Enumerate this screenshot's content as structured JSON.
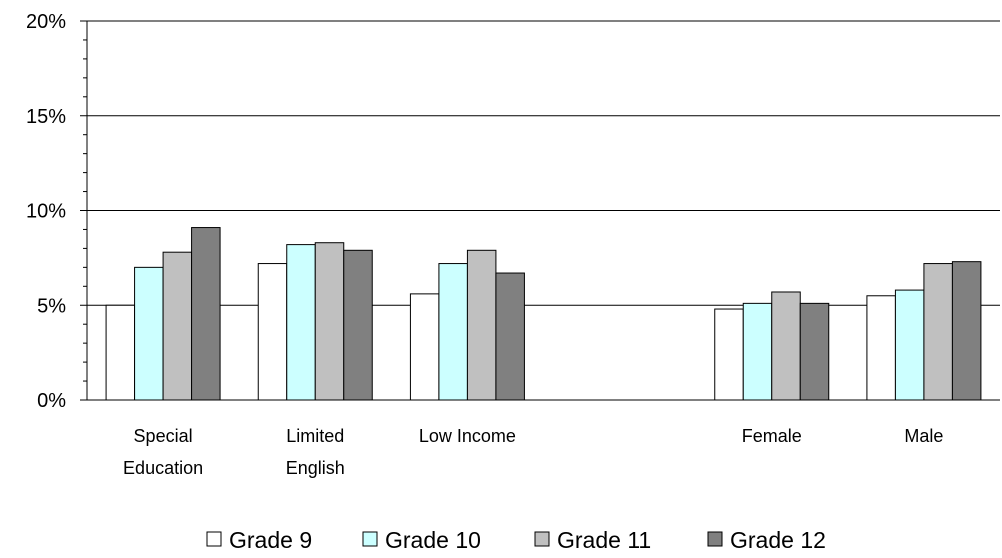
{
  "chart_data": {
    "type": "bar",
    "categories": [
      [
        "Special",
        "Education"
      ],
      [
        "Limited",
        "English"
      ],
      [
        "Low  Income"
      ],
      [],
      [
        "Female"
      ],
      [
        "Male"
      ]
    ],
    "series": [
      {
        "name": "Grade 9",
        "color": "#ffffff",
        "values": [
          5.0,
          7.2,
          5.6,
          null,
          4.8,
          5.5
        ]
      },
      {
        "name": "Grade 10",
        "color": "#ccffff",
        "values": [
          7.0,
          8.2,
          7.2,
          null,
          5.1,
          5.8
        ]
      },
      {
        "name": "Grade 11",
        "color": "#c0c0c0",
        "values": [
          7.8,
          8.3,
          7.9,
          null,
          5.7,
          7.2
        ]
      },
      {
        "name": "Grade 12",
        "color": "#808080",
        "values": [
          9.1,
          7.9,
          6.7,
          null,
          5.1,
          7.3
        ]
      }
    ],
    "y_ticks": [
      "0%",
      "5%",
      "10%",
      "15%",
      "20%"
    ],
    "ylim": [
      0,
      20
    ],
    "y_major_step": 5,
    "y_minor_step": 1,
    "grid": "horizontal major lines",
    "legend_position": "bottom",
    "title": "",
    "xlabel": "",
    "ylabel": ""
  }
}
